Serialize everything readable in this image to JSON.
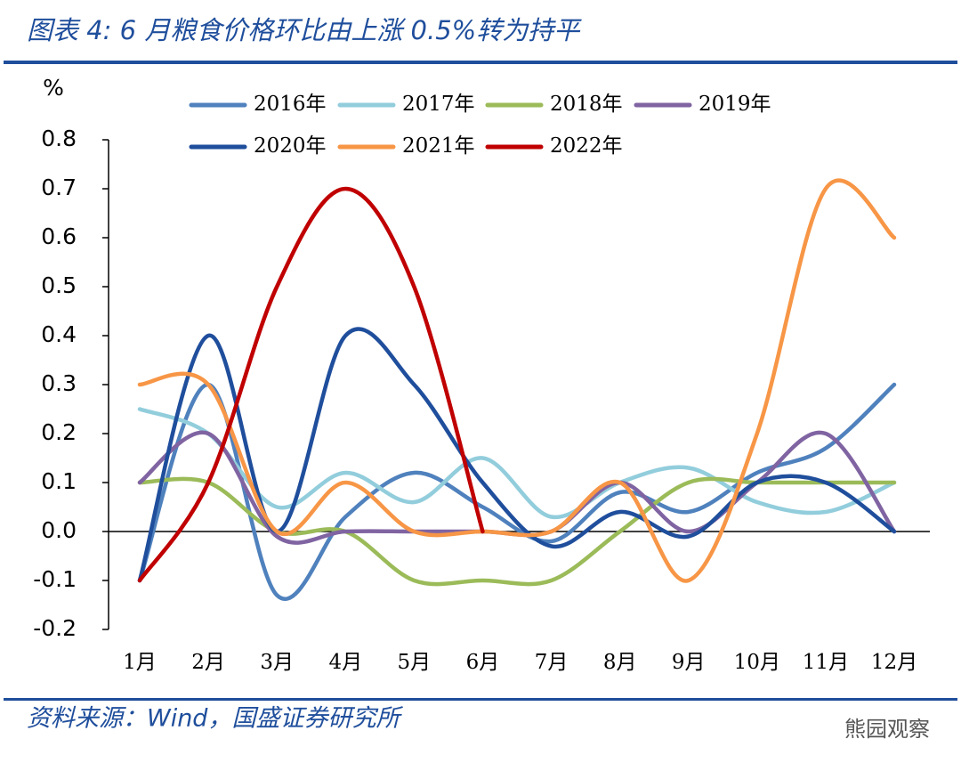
{
  "chart_data": {
    "type": "line",
    "title": "图表 4:  6 月粮食价格环比由上涨 0.5%转为持平",
    "y_label": "%",
    "source": "资料来源：Wind，国盛证券研究所",
    "watermark": "熊园观察",
    "categories": [
      "1月",
      "2月",
      "3月",
      "4月",
      "5月",
      "6月",
      "7月",
      "8月",
      "9月",
      "10月",
      "11月",
      "12月"
    ],
    "ylim": [
      -0.2,
      0.8
    ],
    "yticks": [
      -0.2,
      -0.1,
      {
        "value": 0,
        "label": "0.0"
      },
      0.1,
      0.2,
      0.3,
      0.4,
      0.5,
      0.6,
      0.7,
      0.8
    ],
    "series": [
      {
        "name": "2016年",
        "color": "#4f81bd",
        "values": [
          -0.1,
          0.3,
          -0.13,
          0.03,
          0.12,
          0.05,
          -0.02,
          0.08,
          0.04,
          0.12,
          0.17,
          0.3
        ]
      },
      {
        "name": "2017年",
        "color": "#92cddc",
        "values": [
          0.25,
          0.2,
          0.05,
          0.12,
          0.06,
          0.15,
          0.03,
          0.1,
          0.13,
          0.06,
          0.04,
          0.1
        ]
      },
      {
        "name": "2018年",
        "color": "#9bbb59",
        "values": [
          0.1,
          0.1,
          0,
          0,
          -0.1,
          -0.1,
          -0.1,
          0,
          0.1,
          0.1,
          0.1,
          0.1
        ]
      },
      {
        "name": "2019年",
        "color": "#8064a2",
        "values": [
          0.1,
          0.2,
          -0.01,
          0,
          0,
          0,
          0,
          0.1,
          0,
          0.1,
          0.2,
          0
        ]
      },
      {
        "name": "2020年",
        "color": "#1f4e9c",
        "values": [
          -0.1,
          0.4,
          0,
          0.4,
          0.3,
          0.1,
          -0.03,
          0.04,
          -0.01,
          0.1,
          0.1,
          0
        ]
      },
      {
        "name": "2021年",
        "color": "#f79646",
        "values": [
          0.3,
          0.3,
          0,
          0.1,
          0,
          0,
          0,
          0.1,
          -0.1,
          0.2,
          0.7,
          0.6
        ]
      },
      {
        "name": "2022年",
        "color": "#c00000",
        "values": [
          -0.1,
          0.1,
          0.5,
          0.7,
          0.5,
          0,
          null,
          null,
          null,
          null,
          null,
          null
        ]
      }
    ]
  }
}
